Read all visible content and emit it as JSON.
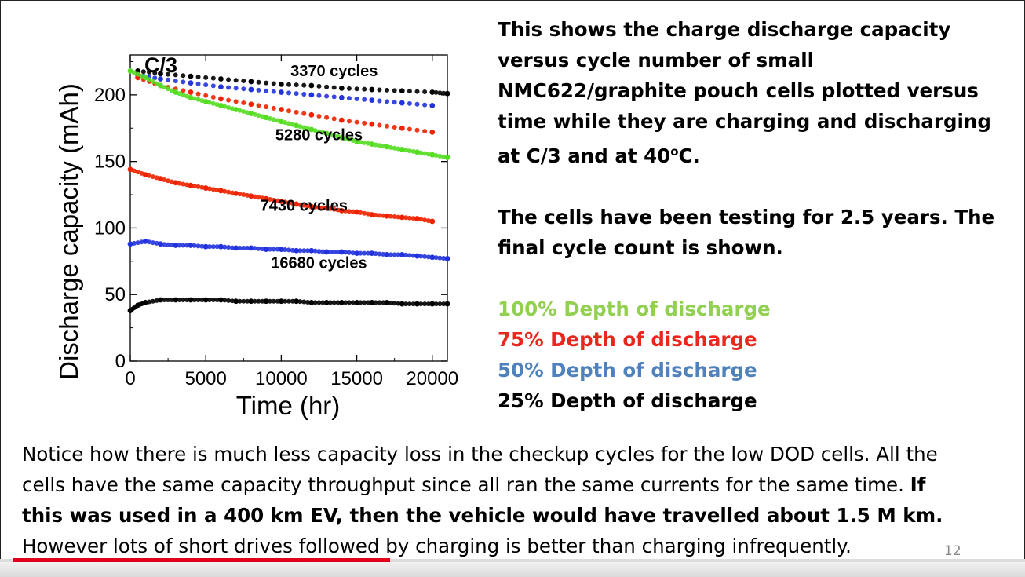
{
  "chart_data": {
    "type": "scatter",
    "title": "C/3",
    "xlabel": "Time (hr)",
    "ylabel": "Discharge capacity (mAh)",
    "xlim": [
      0,
      21000
    ],
    "ylim": [
      0,
      230
    ],
    "xticks": [
      "0",
      "5000",
      "10000",
      "15000",
      "20000"
    ],
    "yticks": [
      "0",
      "50",
      "100",
      "150",
      "200"
    ],
    "grid": false,
    "annotations": [
      {
        "text": "3370 cycles",
        "x": 13500,
        "y": 214
      },
      {
        "text": "5280 cycles",
        "x": 12500,
        "y": 166
      },
      {
        "text": "7430 cycles",
        "x": 11500,
        "y": 113
      },
      {
        "text": "16680 cycles",
        "x": 12500,
        "y": 70
      }
    ],
    "series": [
      {
        "color": "#000000",
        "points": [
          [
            500,
            218
          ],
          [
            2000,
            216
          ],
          [
            4000,
            214
          ],
          [
            6000,
            212
          ],
          [
            8000,
            210
          ],
          [
            10000,
            208
          ],
          [
            12000,
            207
          ],
          [
            14000,
            205
          ],
          [
            16000,
            204
          ],
          [
            18000,
            203
          ],
          [
            20000,
            202
          ],
          [
            21000,
            201
          ]
        ]
      },
      {
        "color": "#2233dd",
        "points": [
          [
            500,
            215
          ],
          [
            2000,
            212
          ],
          [
            4000,
            209
          ],
          [
            6000,
            206
          ],
          [
            8000,
            204
          ],
          [
            10000,
            202
          ],
          [
            12000,
            200
          ],
          [
            14000,
            198
          ],
          [
            16000,
            196
          ],
          [
            18000,
            194
          ],
          [
            20000,
            192
          ]
        ]
      },
      {
        "color": "#ee2200",
        "points": [
          [
            500,
            213
          ],
          [
            2000,
            207
          ],
          [
            4000,
            202
          ],
          [
            6000,
            197
          ],
          [
            8000,
            193
          ],
          [
            10000,
            189
          ],
          [
            12000,
            185
          ],
          [
            14000,
            181
          ],
          [
            16000,
            178
          ],
          [
            18000,
            175
          ],
          [
            20000,
            172
          ]
        ]
      },
      {
        "color": "#55dd22",
        "points": [
          [
            0,
            218
          ],
          [
            1000,
            213
          ],
          [
            2000,
            207
          ],
          [
            3000,
            202
          ],
          [
            4000,
            198
          ],
          [
            5000,
            195
          ],
          [
            6000,
            192
          ],
          [
            7000,
            189
          ],
          [
            8000,
            186
          ],
          [
            9000,
            183
          ],
          [
            10000,
            180
          ],
          [
            11000,
            177
          ],
          [
            12000,
            174
          ],
          [
            13000,
            171
          ],
          [
            14000,
            168
          ],
          [
            15000,
            165
          ],
          [
            16000,
            163
          ],
          [
            17000,
            161
          ],
          [
            18000,
            159
          ],
          [
            19000,
            157
          ],
          [
            20000,
            155
          ],
          [
            21000,
            153
          ]
        ]
      },
      {
        "color": "#ee2200",
        "points": [
          [
            0,
            144
          ],
          [
            1000,
            140
          ],
          [
            2000,
            137
          ],
          [
            3000,
            134
          ],
          [
            4000,
            132
          ],
          [
            5000,
            130
          ],
          [
            6000,
            128
          ],
          [
            7000,
            126
          ],
          [
            8000,
            124
          ],
          [
            9000,
            122
          ],
          [
            10000,
            120
          ],
          [
            11000,
            118
          ],
          [
            12000,
            116
          ],
          [
            13000,
            115
          ],
          [
            14000,
            113
          ],
          [
            15000,
            112
          ],
          [
            16000,
            110
          ],
          [
            17000,
            109
          ],
          [
            18000,
            108
          ],
          [
            19000,
            107
          ],
          [
            20000,
            105
          ]
        ]
      },
      {
        "color": "#2233dd",
        "points": [
          [
            0,
            88
          ],
          [
            1000,
            90
          ],
          [
            2000,
            88
          ],
          [
            3000,
            87
          ],
          [
            4000,
            87
          ],
          [
            5000,
            86
          ],
          [
            6000,
            86
          ],
          [
            7000,
            85
          ],
          [
            8000,
            85
          ],
          [
            9000,
            84
          ],
          [
            10000,
            84
          ],
          [
            11000,
            83
          ],
          [
            12000,
            83
          ],
          [
            13000,
            82
          ],
          [
            14000,
            82
          ],
          [
            15000,
            81
          ],
          [
            16000,
            81
          ],
          [
            17000,
            80
          ],
          [
            18000,
            80
          ],
          [
            19000,
            79
          ],
          [
            20000,
            78
          ],
          [
            21000,
            77
          ]
        ]
      },
      {
        "color": "#000000",
        "points": [
          [
            0,
            38
          ],
          [
            500,
            42
          ],
          [
            1000,
            44
          ],
          [
            2000,
            46
          ],
          [
            3000,
            46
          ],
          [
            4000,
            46
          ],
          [
            5000,
            46
          ],
          [
            6000,
            46
          ],
          [
            7000,
            45
          ],
          [
            8000,
            45
          ],
          [
            9000,
            45
          ],
          [
            10000,
            45
          ],
          [
            11000,
            45
          ],
          [
            12000,
            44
          ],
          [
            13000,
            44
          ],
          [
            14000,
            44
          ],
          [
            15000,
            44
          ],
          [
            16000,
            44
          ],
          [
            17000,
            44
          ],
          [
            18000,
            43
          ],
          [
            19000,
            43
          ],
          [
            20000,
            43
          ],
          [
            21000,
            43
          ]
        ]
      }
    ]
  },
  "right_text": {
    "paragraph1": "This shows the charge discharge capacity versus cycle number of small NMC622/graphite pouch cells plotted versus time while they are charging and discharging at C/3 and at 40",
    "paragraph1_sup": "o",
    "paragraph1_end": "C.",
    "paragraph2": "The cells have been testing for 2.5 years.  The final cycle count is shown."
  },
  "legend": [
    {
      "label": "100% Depth of discharge",
      "color": "#92d050"
    },
    {
      "label": "75% Depth of discharge",
      "color": "#e8281c"
    },
    {
      "label": "50% Depth of discharge",
      "color": "#4f81bd"
    },
    {
      "label": "25% Depth of discharge",
      "color": "#000000"
    }
  ],
  "bottom_text": {
    "line1": "Notice how there is much less capacity loss in the checkup cycles for the low DOD cells.  All the",
    "line2_normal": "cells have the same capacity throughput since all ran the same currents for the same time.  ",
    "line2_bold": "If",
    "line3_bold": "this was used in a 400 km EV, then the vehicle would have travelled about 1.5 M km.",
    "line4": "However lots of short drives followed by charging is better than charging infrequently."
  },
  "page_number": "12",
  "video_progress": 0.373
}
